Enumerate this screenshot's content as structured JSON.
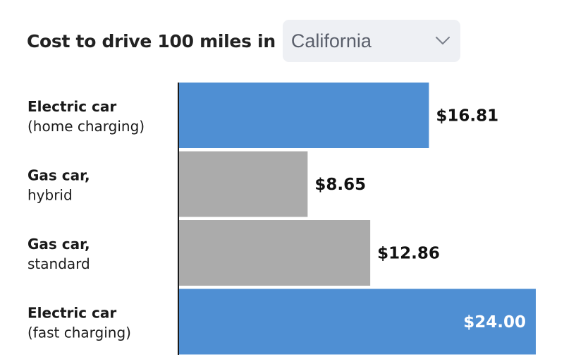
{
  "header": {
    "title": "Cost to drive 100 miles in",
    "state_select": {
      "selected": "California",
      "icon": "chevron-down-icon"
    }
  },
  "colors": {
    "electric": "#4f8fd3",
    "gas": "#ababab",
    "axis": "#1a1a1a",
    "label_outside": "#111111",
    "label_inside": "#ffffff"
  },
  "chart_data": {
    "type": "bar",
    "orientation": "horizontal",
    "title": "Cost to drive 100 miles in California",
    "xlim": [
      0,
      24.0
    ],
    "grid": false,
    "categories": [
      {
        "line1": "Electric car",
        "line2": "(home charging)",
        "kind": "electric"
      },
      {
        "line1": "Gas car,",
        "line2": "hybrid",
        "kind": "gas"
      },
      {
        "line1": "Gas car,",
        "line2": "standard",
        "kind": "gas"
      },
      {
        "line1": "Electric car",
        "line2": "(fast charging)",
        "kind": "electric"
      }
    ],
    "values": [
      16.81,
      8.65,
      12.86,
      24.0
    ],
    "value_labels": [
      "$16.81",
      "$8.65",
      "$12.86",
      "$24.00"
    ]
  }
}
